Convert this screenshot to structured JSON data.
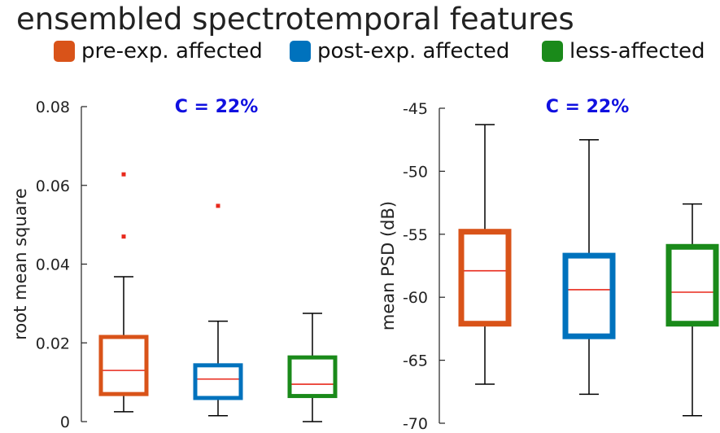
{
  "title": "ensembled spectrotemporal features",
  "legend": [
    {
      "label": "pre-exp. affected",
      "color": "#d95319"
    },
    {
      "label": "post-exp. affected",
      "color": "#0072bd"
    },
    {
      "label": "less-affected",
      "color": "#1a8a1a"
    }
  ],
  "colors": {
    "median": "#e8291c",
    "outlier": "#e8291c",
    "whisker": "#000000",
    "annotation": "#1010e0"
  },
  "chart_data": [
    {
      "type": "boxplot",
      "title": "",
      "annotation": "C = 22%",
      "xlabel": "",
      "ylabel": "root mean square",
      "ylim": [
        0,
        0.08
      ],
      "yticks": [
        0,
        0.02,
        0.04,
        0.06,
        0.08
      ],
      "ytick_labels": [
        "0",
        "0.02",
        "0.04",
        "0.06",
        "0.08"
      ],
      "series": [
        {
          "name": "pre-exp. affected",
          "min": 0.0025,
          "q1": 0.007,
          "median": 0.013,
          "q3": 0.0215,
          "max": 0.0368,
          "outliers": [
            0.047,
            0.0628
          ]
        },
        {
          "name": "post-exp. affected",
          "min": 0.0015,
          "q1": 0.006,
          "median": 0.0108,
          "q3": 0.0143,
          "max": 0.0255,
          "outliers": [
            0.0548
          ]
        },
        {
          "name": "less-affected",
          "min": 0.0,
          "q1": 0.0065,
          "median": 0.0095,
          "q3": 0.0163,
          "max": 0.0275,
          "outliers": []
        }
      ]
    },
    {
      "type": "boxplot",
      "title": "",
      "annotation": "C = 22%",
      "xlabel": "",
      "ylabel": "mean PSD (dB)",
      "ylim": [
        -70,
        -45
      ],
      "yticks": [
        -70,
        -65,
        -60,
        -55,
        -50,
        -45
      ],
      "ytick_labels": [
        "-70",
        "-65",
        "-60",
        "-55",
        "-50",
        "-45"
      ],
      "series": [
        {
          "name": "pre-exp. affected",
          "min": -66.9,
          "q1": -62.1,
          "median": -57.9,
          "q3": -54.8,
          "max": -46.3,
          "outliers": []
        },
        {
          "name": "post-exp. affected",
          "min": -67.7,
          "q1": -63.1,
          "median": -59.4,
          "q3": -56.7,
          "max": -47.5,
          "outliers": []
        },
        {
          "name": "less-affected",
          "min": -69.4,
          "q1": -62.1,
          "median": -59.6,
          "q3": -56.0,
          "max": -52.6,
          "outliers": []
        }
      ]
    }
  ]
}
